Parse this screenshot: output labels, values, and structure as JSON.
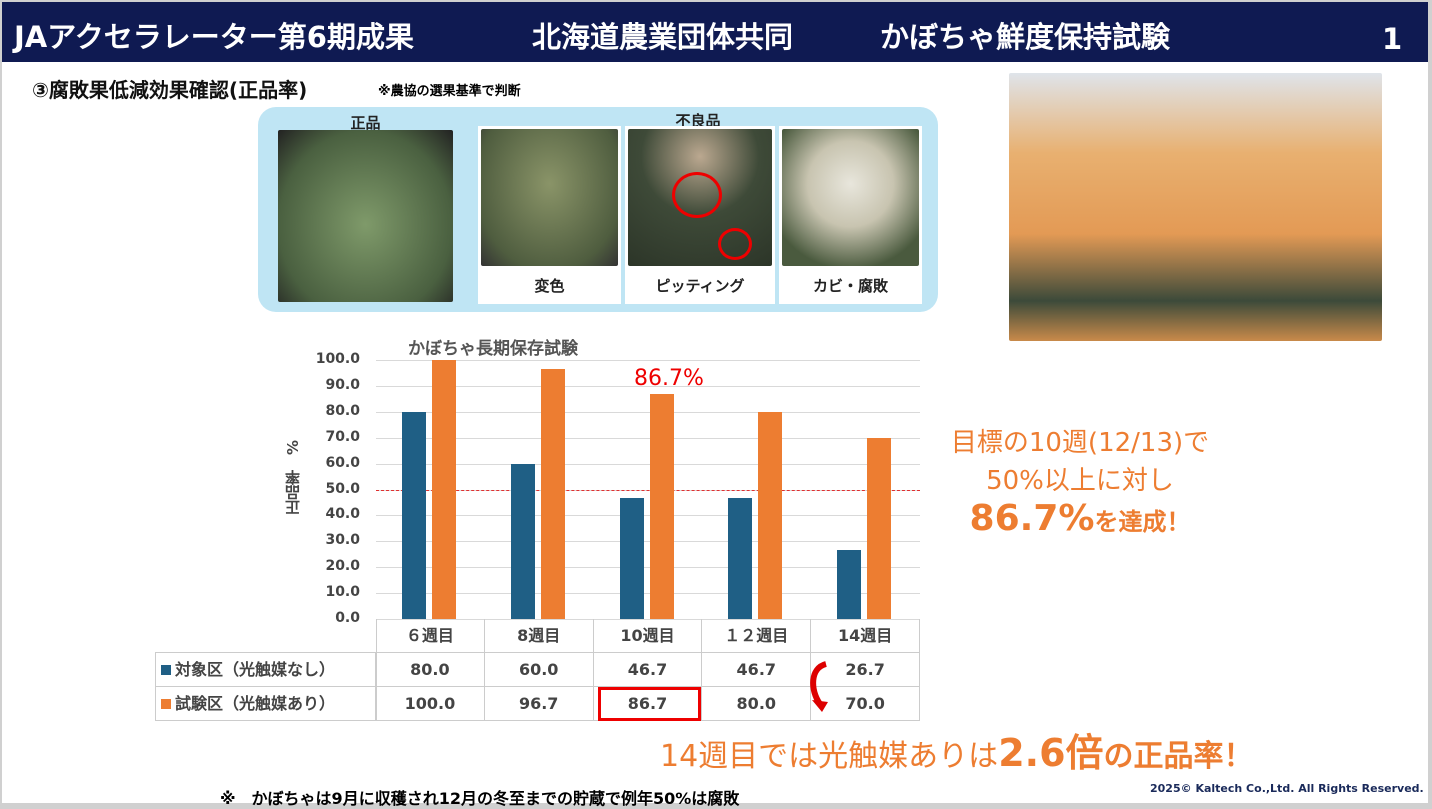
{
  "header": {
    "title": "JAアクセラレーター第6期成果",
    "subtitle": "北海道農業団体共同",
    "subtitle2": "かぼちゃ鮮度保持試験",
    "page": "1"
  },
  "section": {
    "title": "③腐敗果低減効果確認(正品率)",
    "note": "※農協の選果基準で判断"
  },
  "photos": {
    "good_label": "正品",
    "defect_label": "不良品",
    "defects": [
      "変色",
      "ピッティング",
      "カビ・腐敗"
    ]
  },
  "callout": {
    "line1": "目標の10週(12/13)で",
    "line2": "50%以上に対し",
    "big": "86.7%",
    "tail": "を達成！"
  },
  "bottom_callout": {
    "pre": "14週目では光触媒ありは",
    "big": "2.6倍",
    "tail": "の正品率！"
  },
  "footnote": "※　かぼちゃは9月に収穫され12月の冬至までの貯蔵で例年50%は腐敗",
  "copyright": "2025© Kaltech Co.,Ltd. All Rights Reserved.",
  "chart_data": {
    "type": "bar",
    "title": "かぼちゃ長期保存試験",
    "ylabel": "正品率　%",
    "ylim": [
      0,
      100
    ],
    "yticks": [
      "0.0",
      "10.0",
      "20.0",
      "30.0",
      "40.0",
      "50.0",
      "60.0",
      "70.0",
      "80.0",
      "90.0",
      "100.0"
    ],
    "categories": [
      "６週目",
      "8週目",
      "10週目",
      "１２週目",
      "14週目"
    ],
    "series": [
      {
        "name": "対象区（光触媒なし）",
        "color": "#1f5f85",
        "values": [
          80.0,
          60.0,
          46.7,
          46.7,
          26.7
        ],
        "labels": [
          "80.0",
          "60.0",
          "46.7",
          "46.7",
          "26.7"
        ]
      },
      {
        "name": "試験区（光触媒あり）",
        "color": "#ed7d31",
        "values": [
          100.0,
          96.7,
          86.7,
          80.0,
          70.0
        ],
        "labels": [
          "100.0",
          "96.7",
          "86.7",
          "80.0",
          "70.0"
        ]
      }
    ],
    "reference_line": {
      "value": 50,
      "color": "#e03030",
      "style": "dashed"
    },
    "annotation": "86.7%",
    "grid": true
  }
}
